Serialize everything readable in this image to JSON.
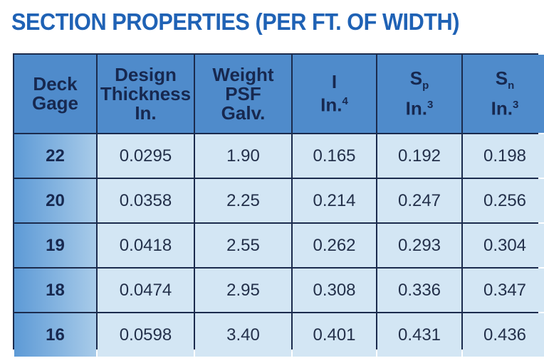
{
  "header": {
    "title": "SECTION PROPERTIES (PER FT. OF WIDTH)"
  },
  "table": {
    "columns": [
      {
        "lines": [
          "Deck",
          "Gage"
        ]
      },
      {
        "lines": [
          "Design",
          "Thickness",
          "In."
        ]
      },
      {
        "lines": [
          "Weight",
          "PSF",
          "Galv."
        ]
      },
      {
        "symbol": "I",
        "unit": "In.",
        "exponent": "4"
      },
      {
        "symbol": "S",
        "subscript": "p",
        "unit": "In.",
        "exponent": "3"
      },
      {
        "symbol": "S",
        "subscript": "n",
        "unit": "In.",
        "exponent": "3"
      }
    ],
    "rows": [
      [
        "22",
        "0.0295",
        "1.90",
        "0.165",
        "0.192",
        "0.198"
      ],
      [
        "20",
        "0.0358",
        "2.25",
        "0.214",
        "0.247",
        "0.256"
      ],
      [
        "19",
        "0.0418",
        "2.55",
        "0.262",
        "0.293",
        "0.304"
      ],
      [
        "18",
        "0.0474",
        "2.95",
        "0.308",
        "0.336",
        "0.347"
      ],
      [
        "16",
        "0.0598",
        "3.40",
        "0.401",
        "0.431",
        "0.436"
      ]
    ]
  }
}
